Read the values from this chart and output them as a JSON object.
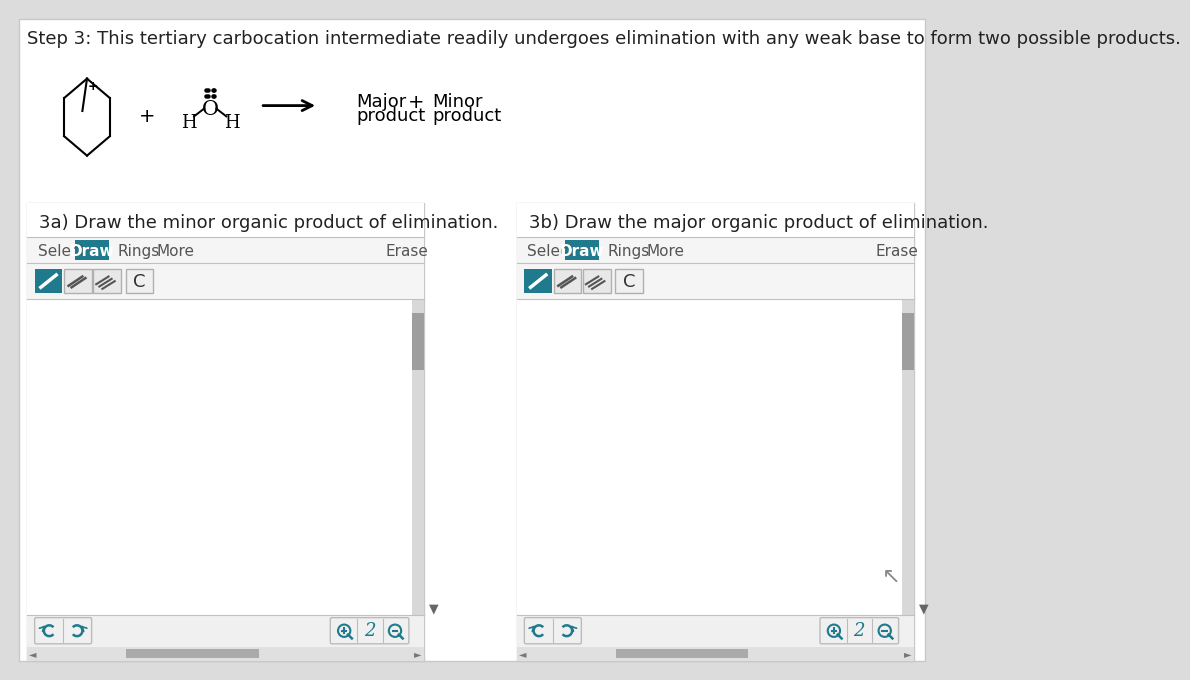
{
  "bg_color": "#dcdcdc",
  "white": "#ffffff",
  "light_gray_panel": "#f2f2f2",
  "header_text": "Step 3: This tertiary carbocation intermediate readily undergoes elimination with any weak base to form two possible products.",
  "header_fontsize": 13,
  "panel_3a_title": "3a) Draw the minor organic product of elimination.",
  "panel_3b_title": "3b) Draw the major organic product of elimination.",
  "draw_btn_color": "#1e7a8c",
  "bond_btn_1_color": "#1e7a8c",
  "bond_btn_23_color": "#e8e8e8",
  "bond_btn_border": "#aaaaaa",
  "c_btn_color": "#f5f5f5",
  "c_btn_border": "#bbbbbb",
  "scrollbar_track": "#d0d0d0",
  "scrollbar_thumb": "#9e9e9e",
  "teal_icon": "#1e7a8c",
  "toolbar_separator": "#cccccc",
  "panel_border": "#c8c8c8",
  "bottom_btn_bg": "#f0f0f0",
  "bottom_btn_border": "#c0c0c0"
}
